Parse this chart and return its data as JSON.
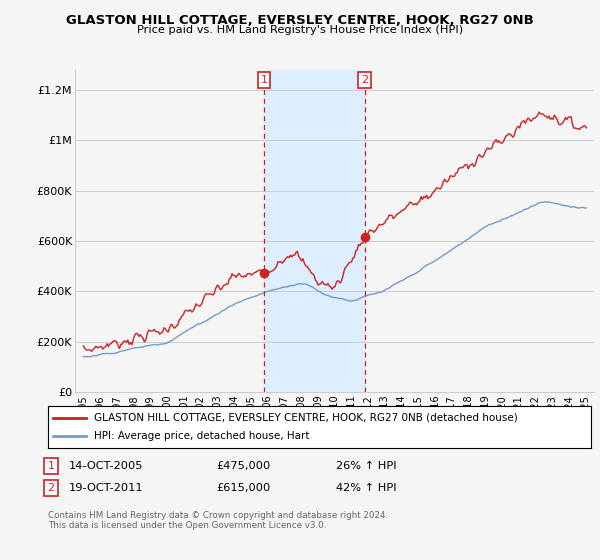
{
  "title": "GLASTON HILL COTTAGE, EVERSLEY CENTRE, HOOK, RG27 0NB",
  "subtitle": "Price paid vs. HM Land Registry's House Price Index (HPI)",
  "legend_line1": "GLASTON HILL COTTAGE, EVERSLEY CENTRE, HOOK, RG27 0NB (detached house)",
  "legend_line2": "HPI: Average price, detached house, Hart",
  "footnote": "Contains HM Land Registry data © Crown copyright and database right 2024.\nThis data is licensed under the Open Government Licence v3.0.",
  "marker1_label": "1",
  "marker1_date": "14-OCT-2005",
  "marker1_price": "£475,000",
  "marker1_hpi": "26% ↑ HPI",
  "marker1_x": 2005.8,
  "marker1_y": 475000,
  "marker2_label": "2",
  "marker2_date": "19-OCT-2011",
  "marker2_price": "£615,000",
  "marker2_hpi": "42% ↑ HPI",
  "marker2_x": 2011.8,
  "marker2_y": 615000,
  "red_color": "#cc2222",
  "blue_color": "#7799cc",
  "shade_color": "#ddeeff",
  "background_color": "#f5f5f5",
  "grid_color": "#cccccc",
  "ylim_min": 0,
  "ylim_max": 1280000,
  "xlim_min": 1994.5,
  "xlim_max": 2025.5,
  "yticks": [
    0,
    200000,
    400000,
    600000,
    800000,
    1000000,
    1200000
  ],
  "ylabels": [
    "£0",
    "£200K",
    "£400K",
    "£600K",
    "£800K",
    "£1M",
    "£1.2M"
  ],
  "xtick_start": 1995,
  "xtick_end": 2025
}
